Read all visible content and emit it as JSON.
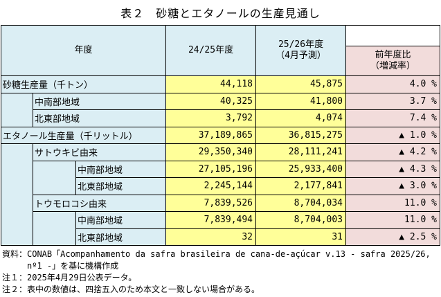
{
  "title": "表２　砂糖とエタノールの生産見通し",
  "headers": {
    "year_label": "年度",
    "col1": "24/25年度",
    "col2_line1": "25/26年度",
    "col2_line2": "（4月予測）",
    "col3_line1": "前年度比",
    "col3_line2": "（増減率）"
  },
  "rows": [
    {
      "label": "砂糖生産量（千トン）",
      "v1": "44,118",
      "v2": "45,875",
      "ratio": "4.0 %"
    },
    {
      "label": "中南部地域",
      "v1": "40,325",
      "v2": "41,800",
      "ratio": "3.7 %"
    },
    {
      "label": "北東部地域",
      "v1": "3,792",
      "v2": "4,074",
      "ratio": "7.4 %"
    },
    {
      "label": "エタノール生産量（千リットル）",
      "v1": "37,189,865",
      "v2": "36,815,275",
      "ratio": "▲ 1.0 %"
    },
    {
      "label": "サトウキビ由来",
      "v1": "29,350,340",
      "v2": "28,111,241",
      "ratio": "▲ 4.2 %"
    },
    {
      "label": "中南部地域",
      "v1": "27,105,196",
      "v2": "25,933,400",
      "ratio": "▲ 4.3 %"
    },
    {
      "label": "北東部地域",
      "v1": "2,245,144",
      "v2": "2,177,841",
      "ratio": "▲ 3.0 %"
    },
    {
      "label": "トウモロコシ由来",
      "v1": "7,839,526",
      "v2": "8,704,034",
      "ratio": "11.0 %"
    },
    {
      "label": "中南部地域",
      "v1": "7,839,494",
      "v2": "8,704,003",
      "ratio": "11.0 %"
    },
    {
      "label": "北東部地域",
      "v1": "32",
      "v2": "31",
      "ratio": "▲ 2.5 %"
    }
  ],
  "notes": {
    "source_line1": "資料：CONAB「Acompanhamento da safra brasileira de cana-de-açúcar v.13 - safra 2025/26,",
    "source_line2": "nº1 -」を基に機構作成",
    "note1": "注１：2025年4月29日公表データ。",
    "note2": "注２：表中の数値は、四捨五入のため本文と一致しない場合がある。"
  },
  "colors": {
    "header_bg": "#dbeef4",
    "value_bg": "#ffff99",
    "ratio_bg": "#f2dcdb"
  }
}
